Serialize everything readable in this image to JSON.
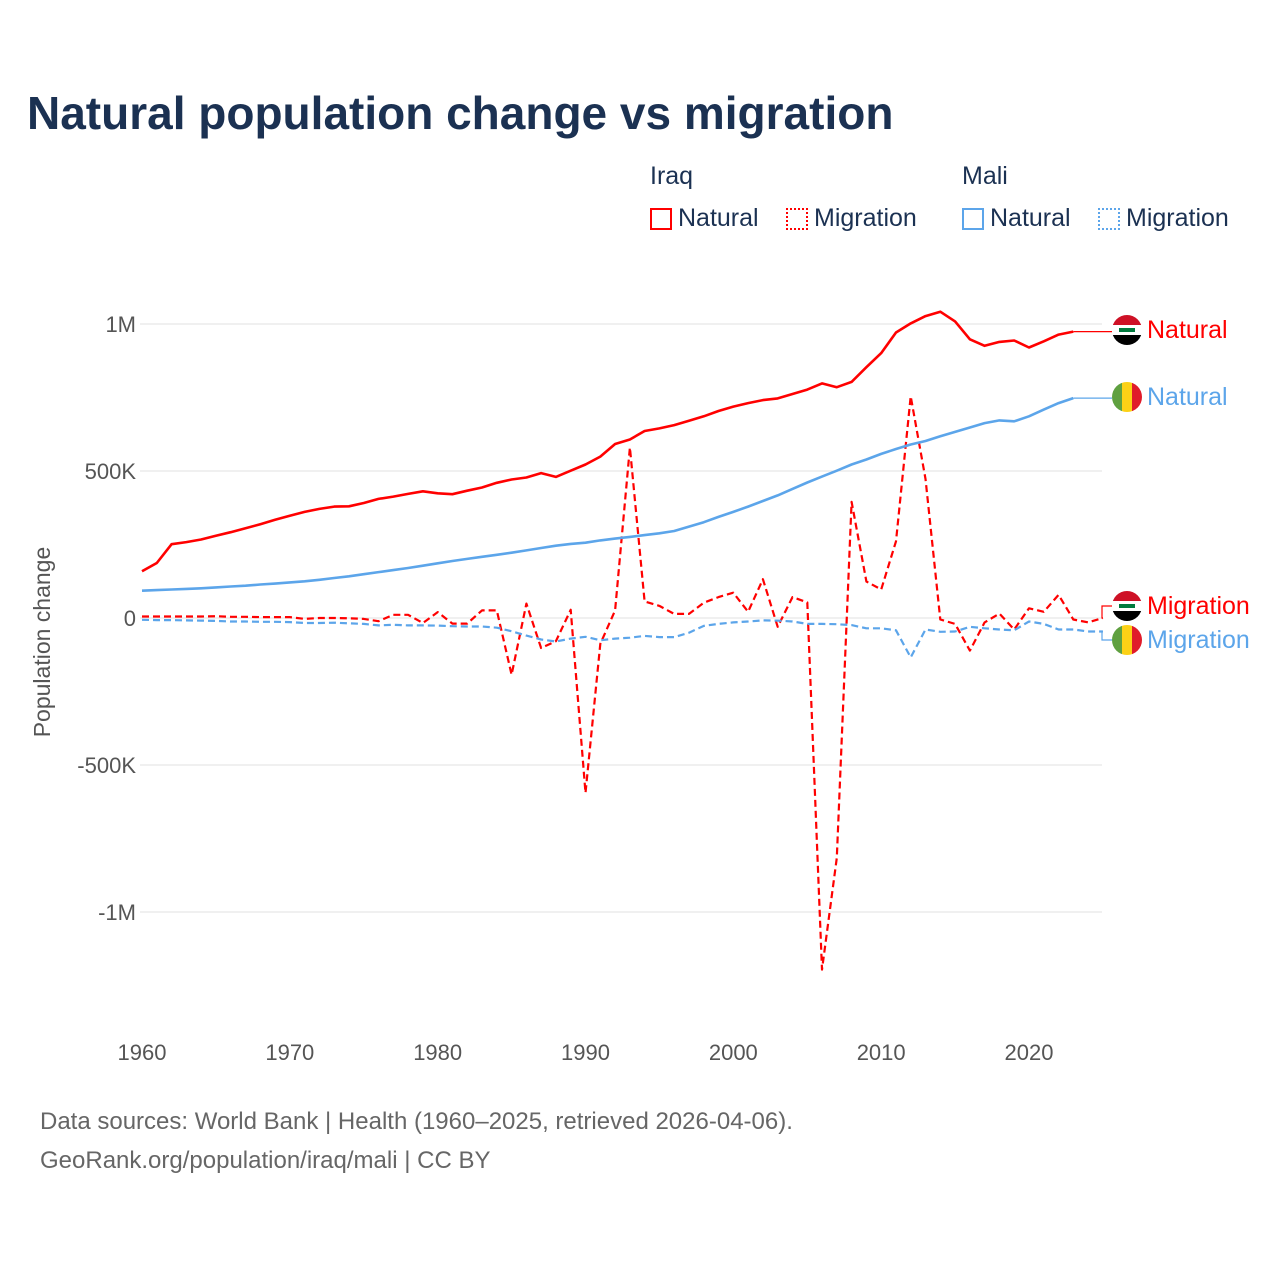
{
  "title": "Natural population change vs migration",
  "legend": {
    "groups": [
      {
        "name": "Iraq",
        "items": [
          "Natural",
          "Migration"
        ]
      },
      {
        "name": "Mali",
        "items": [
          "Natural",
          "Migration"
        ]
      }
    ]
  },
  "end_labels": {
    "iraq_natural": "Natural",
    "mali_natural": "Natural",
    "iraq_migration": "Migration",
    "mali_migration": "Migration"
  },
  "footer": {
    "line1": "Data sources: World Bank | Health (1960–2025, retrieved 2026-04-06).",
    "line2": "GeoRank.org/population/iraq/mali | CC BY"
  },
  "colors": {
    "iraq": "#ff0000",
    "mali": "#5ca5ea",
    "title": "#1b3152"
  },
  "chart_data": {
    "type": "line",
    "title": "Natural population change vs migration",
    "xlabel": "",
    "ylabel": "Population change",
    "xlim": [
      1960,
      2025
    ],
    "ylim": [
      -1200000,
      1050000
    ],
    "units": "thousands",
    "grid": true,
    "legend_position": "top-right",
    "x_ticks": [
      1960,
      1970,
      1980,
      1990,
      2000,
      2010,
      2020
    ],
    "x_tick_labels": [
      "1960",
      "1970",
      "1980",
      "1990",
      "2000",
      "2010",
      "2020"
    ],
    "y_ticks": [
      1000,
      500,
      0,
      -500,
      -1000
    ],
    "y_tick_labels": [
      "1M",
      "500K",
      "0",
      "-500K",
      "-1M"
    ],
    "x_start": 1960,
    "series": [
      {
        "name": "Iraq Natural",
        "country": "Iraq",
        "kind": "Natural",
        "color": "#ff0000",
        "dash": false,
        "values": [
          159,
          187,
          251,
          258,
          267,
          280,
          292,
          305,
          319,
          334,
          348,
          361,
          371,
          379,
          380,
          391,
          405,
          413,
          422,
          431,
          424,
          421,
          433,
          444,
          460,
          471,
          478,
          493,
          480,
          501,
          522,
          549,
          592,
          607,
          636,
          645,
          656,
          671,
          686,
          704,
          719,
          731,
          741,
          747,
          762,
          777,
          798,
          785,
          803,
          853,
          901,
          971,
          1002,
          1027,
          1042,
          1009,
          948,
          926,
          939,
          944,
          920,
          941,
          964,
          974,
          null,
          null
        ]
      },
      {
        "name": "Iraq Migration",
        "country": "Iraq",
        "kind": "Migration",
        "color": "#ff0000",
        "dash": true,
        "values": [
          5,
          5,
          5,
          5,
          5,
          6,
          4,
          4,
          3,
          3,
          3,
          -3,
          0,
          0,
          -1,
          -3,
          -11,
          11,
          11,
          -17,
          20,
          -19,
          -19,
          26,
          26,
          -193,
          49,
          -102,
          -79,
          28,
          -595,
          -88,
          26,
          580,
          56,
          41,
          14,
          14,
          52,
          71,
          86,
          21,
          132,
          -30,
          71,
          53,
          -1196,
          -816,
          395,
          124,
          97,
          261,
          754,
          473,
          -5,
          -20,
          -111,
          -15,
          15,
          -39,
          33,
          21,
          79,
          -5,
          -15,
          0
        ]
      },
      {
        "name": "Mali Natural",
        "country": "Mali",
        "kind": "Natural",
        "color": "#5ca5ea",
        "dash": false,
        "values": [
          93,
          95,
          97,
          99,
          101,
          104,
          107,
          110,
          114,
          117,
          121,
          125,
          130,
          136,
          142,
          149,
          156,
          163,
          170,
          178,
          186,
          194,
          201,
          208,
          215,
          222,
          230,
          238,
          246,
          252,
          256,
          264,
          270,
          276,
          282,
          288,
          296,
          311,
          326,
          344,
          361,
          379,
          398,
          417,
          439,
          461,
          481,
          501,
          522,
          539,
          558,
          575,
          590,
          602,
          618,
          633,
          648,
          663,
          672,
          669,
          686,
          709,
          731,
          748,
          null,
          null
        ]
      },
      {
        "name": "Mali Migration",
        "country": "Mali",
        "kind": "Migration",
        "color": "#5ca5ea",
        "dash": true,
        "values": [
          -6,
          -7,
          -7,
          -8,
          -9,
          -10,
          -12,
          -12,
          -13,
          -13,
          -14,
          -17,
          -17,
          -16,
          -18,
          -20,
          -25,
          -23,
          -25,
          -25,
          -26,
          -28,
          -29,
          -29,
          -33,
          -45,
          -60,
          -73,
          -80,
          -70,
          -64,
          -76,
          -70,
          -67,
          -61,
          -65,
          -65,
          -50,
          -27,
          -20,
          -15,
          -12,
          -8,
          -9,
          -12,
          -20,
          -20,
          -21,
          -24,
          -35,
          -35,
          -42,
          -134,
          -39,
          -47,
          -46,
          -30,
          -35,
          -39,
          -42,
          -12,
          -20,
          -39,
          -39,
          -46,
          -46
        ]
      }
    ]
  }
}
